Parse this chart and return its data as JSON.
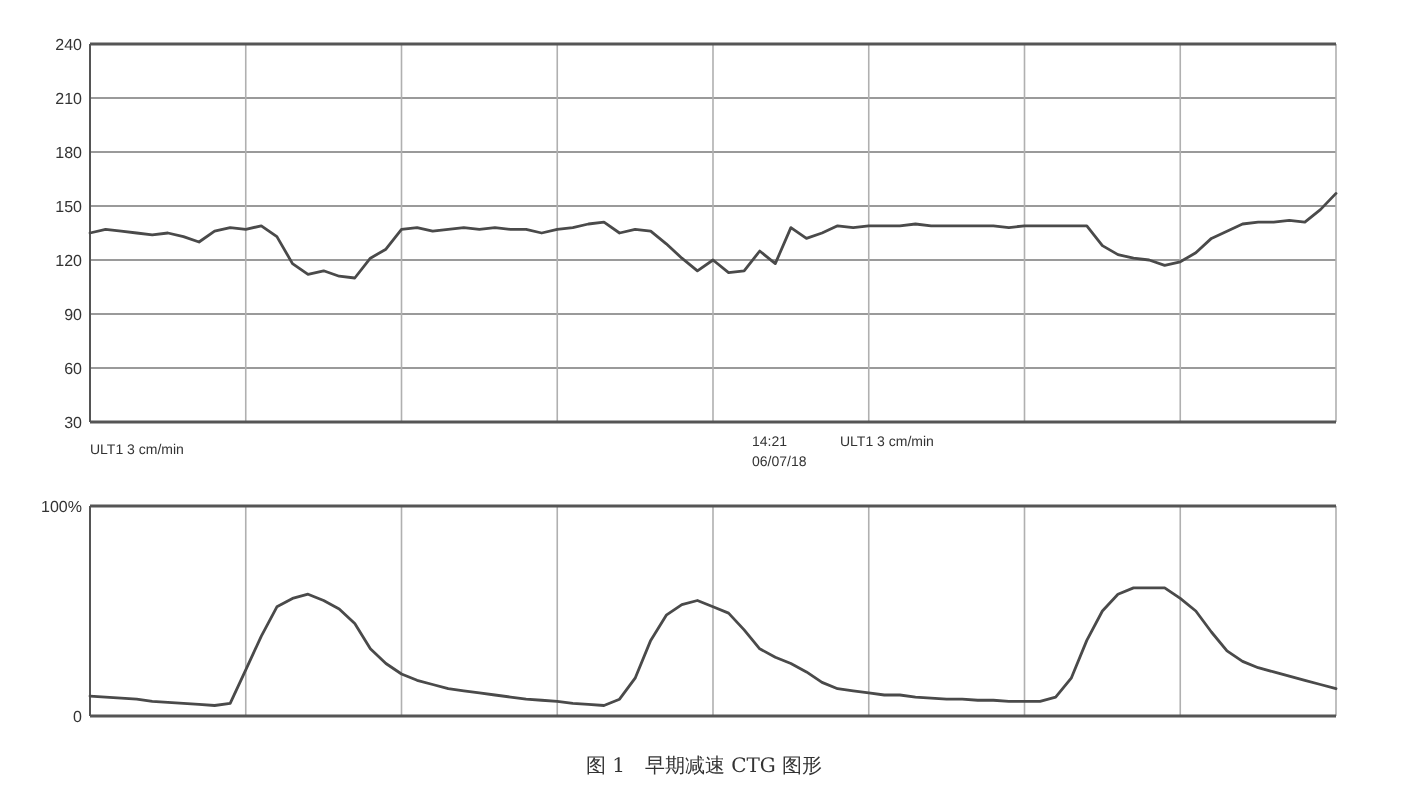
{
  "chart_data": [
    {
      "type": "line",
      "categories": [
        null,
        null,
        null,
        null,
        null,
        null,
        null,
        null,
        null,
        null,
        null,
        null,
        null,
        null,
        null,
        null,
        null,
        null,
        null,
        null,
        null,
        null,
        null,
        null,
        null,
        null,
        null,
        null,
        null,
        null,
        null,
        null,
        null,
        null,
        null,
        null,
        null,
        null,
        null,
        null,
        null,
        null,
        null,
        null,
        null,
        null,
        null,
        null,
        null,
        null,
        null,
        null,
        null,
        null,
        null,
        null,
        null,
        null,
        null,
        null,
        null,
        null,
        null,
        null,
        null,
        null,
        null,
        null,
        null,
        null,
        null,
        null,
        null,
        null,
        null,
        null,
        null,
        null,
        null,
        null,
        null
      ],
      "series": [
        {
          "color": "#4a4a4a",
          "values": [
            135,
            137,
            136,
            135,
            134,
            135,
            133,
            130,
            136,
            138,
            137,
            139,
            133,
            118,
            112,
            114,
            111,
            110,
            121,
            126,
            137,
            138,
            136,
            137,
            138,
            137,
            138,
            137,
            137,
            135,
            137,
            138,
            140,
            141,
            135,
            137,
            136,
            129,
            121,
            114,
            120,
            113,
            114,
            125,
            118,
            138,
            132,
            135,
            139,
            138,
            139,
            139,
            139,
            140,
            139,
            139,
            139,
            139,
            139,
            138,
            139,
            139,
            139,
            139,
            139,
            128,
            123,
            121,
            120,
            117,
            119,
            124,
            132,
            136,
            140,
            141,
            141,
            142,
            141,
            148,
            157
          ]
        }
      ],
      "ylim": [
        30,
        240
      ],
      "yticks": [
        30,
        60,
        90,
        120,
        150,
        180,
        210,
        240
      ],
      "grid": true,
      "annotations": [
        "ULT1   3 cm/min",
        "14:21",
        "06/07/18",
        "ULT1   3 cm/min"
      ]
    },
    {
      "type": "line",
      "categories": [
        null,
        null,
        null,
        null,
        null,
        null,
        null,
        null,
        null,
        null,
        null,
        null,
        null,
        null,
        null,
        null,
        null,
        null,
        null,
        null,
        null,
        null,
        null,
        null,
        null,
        null,
        null,
        null,
        null,
        null,
        null,
        null,
        null,
        null,
        null,
        null,
        null,
        null,
        null,
        null,
        null,
        null,
        null,
        null,
        null,
        null,
        null,
        null,
        null,
        null,
        null,
        null,
        null,
        null,
        null,
        null,
        null,
        null,
        null,
        null,
        null,
        null,
        null,
        null,
        null,
        null,
        null,
        null,
        null,
        null,
        null,
        null,
        null,
        null,
        null,
        null,
        null,
        null,
        null,
        null,
        null
      ],
      "series": [
        {
          "color": "#4a4a4a",
          "values": [
            9.5,
            9,
            8.5,
            8,
            7,
            6.5,
            6,
            5.5,
            5,
            6,
            22,
            38,
            52,
            56,
            58,
            55,
            51,
            44,
            32,
            25,
            20,
            17,
            15,
            13,
            12,
            11,
            10,
            9,
            8,
            7.5,
            7,
            6,
            5.5,
            5,
            8,
            18,
            36,
            48,
            53,
            55,
            52,
            49,
            41,
            32,
            28,
            25,
            21,
            16,
            13,
            12,
            11,
            10,
            10,
            9,
            8.5,
            8,
            8,
            7.5,
            7.5,
            7,
            7,
            7,
            9,
            18,
            36,
            50,
            58,
            61,
            61,
            61,
            56,
            50,
            40,
            31,
            26,
            23,
            21,
            19,
            17,
            15,
            13
          ]
        }
      ],
      "ylim": [
        0,
        100
      ],
      "yticks": [
        0,
        {
          "value": 100,
          "label": "100%"
        }
      ],
      "grid": true,
      "annotations": [
        "图 1　早期减速 CTG 图形"
      ]
    }
  ]
}
